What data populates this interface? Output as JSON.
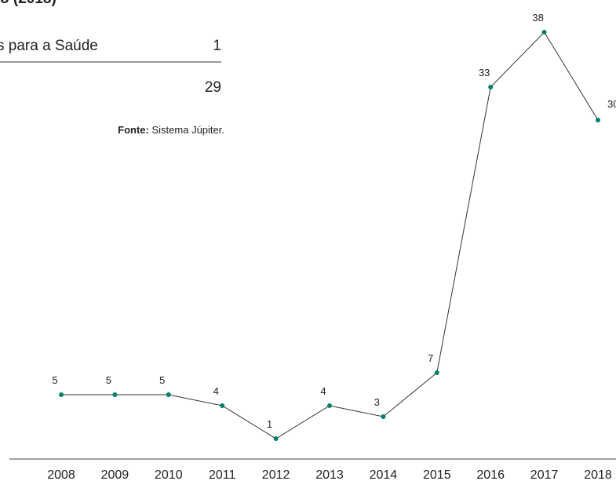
{
  "heading": "o (2018)",
  "table": {
    "rows": [
      [
        "s para a Saúde",
        "1"
      ],
      [
        "",
        "29"
      ]
    ]
  },
  "source": {
    "label": "Fonte:",
    "text": "Sistema Júpiter."
  },
  "chart_data": {
    "type": "line",
    "categories": [
      "2008",
      "2009",
      "2010",
      "2011",
      "2012",
      "2013",
      "2014",
      "2015",
      "2016",
      "2017",
      "2018"
    ],
    "values": [
      5,
      5,
      5,
      4,
      1,
      4,
      3,
      7,
      33,
      38,
      30
    ],
    "color": "#00806a",
    "line_color": "#333333",
    "ylim": [
      0,
      40
    ]
  }
}
